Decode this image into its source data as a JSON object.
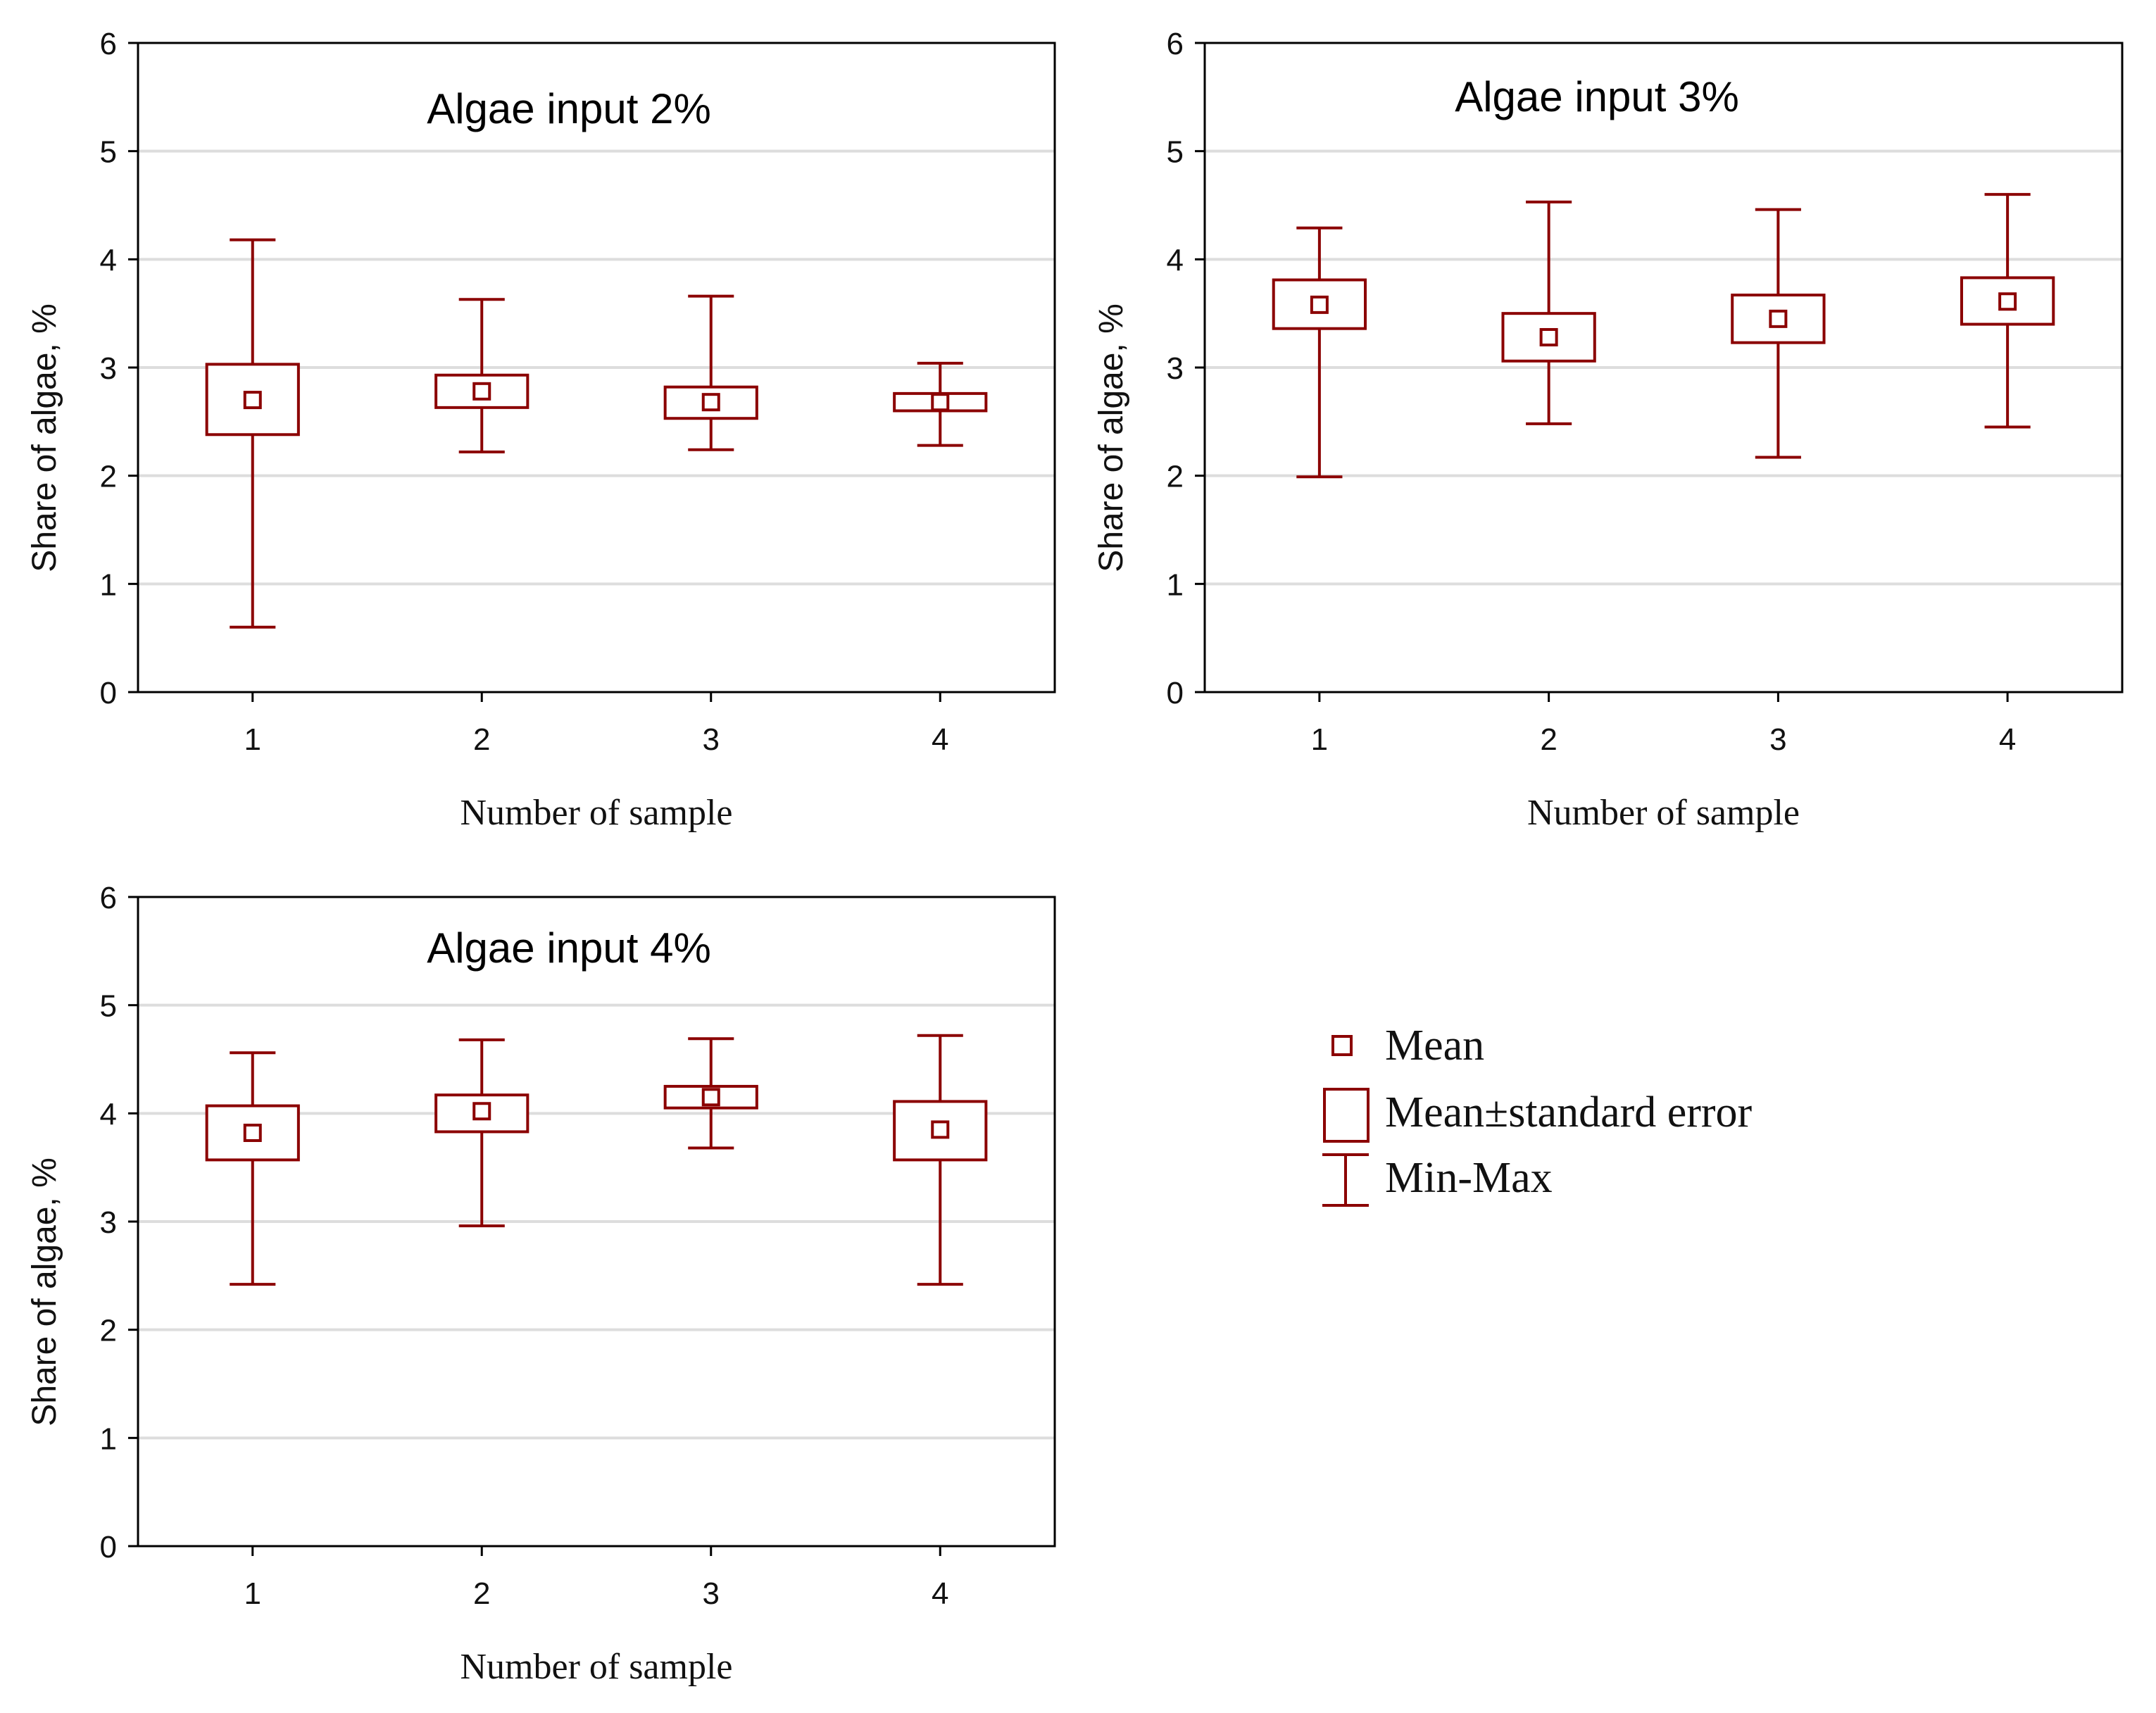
{
  "legend": {
    "mean_label": "Mean",
    "se_label": "Mean±standard error",
    "minmax_label": "Min-Max",
    "placement": "right of bottom panel"
  },
  "colors": {
    "series": "#8b0000",
    "grid": "#dddddd",
    "axis": "#000000"
  },
  "chart_data": [
    {
      "type": "box",
      "title": "Algae input 2%",
      "xlabel": "Number of sample",
      "ylabel": "Share of algae, %",
      "ylim": [
        0,
        6
      ],
      "yticks": [
        0,
        1,
        2,
        3,
        4,
        5,
        6
      ],
      "ytick_labels": [
        "0",
        "1",
        "2",
        "3",
        "4",
        "5",
        "6"
      ],
      "categories": [
        "1",
        "2",
        "3",
        "4"
      ],
      "mean": [
        2.7,
        2.78,
        2.68,
        2.68
      ],
      "se_low": [
        2.38,
        2.63,
        2.53,
        2.6
      ],
      "se_high": [
        3.03,
        2.93,
        2.82,
        2.76
      ],
      "min": [
        0.6,
        2.22,
        2.24,
        2.28
      ],
      "max": [
        4.18,
        3.63,
        3.66,
        3.04
      ],
      "grid": true
    },
    {
      "type": "box",
      "title": "Algae input 3%",
      "xlabel": "Number of sample",
      "ylabel": "Share of algae, %",
      "ylim": [
        0,
        6
      ],
      "yticks": [
        0,
        1,
        2,
        3,
        4,
        5,
        6
      ],
      "ytick_labels": [
        "0",
        "1",
        "2",
        "3",
        "4",
        "5",
        "6"
      ],
      "categories": [
        "1",
        "2",
        "3",
        "4"
      ],
      "mean": [
        3.58,
        3.28,
        3.45,
        3.61
      ],
      "se_low": [
        3.36,
        3.06,
        3.23,
        3.4
      ],
      "se_high": [
        3.81,
        3.5,
        3.67,
        3.83
      ],
      "min": [
        1.99,
        2.48,
        2.17,
        2.45
      ],
      "max": [
        4.29,
        4.53,
        4.46,
        4.6
      ],
      "grid": true
    },
    {
      "type": "box",
      "title": "Algae input 4%",
      "xlabel": "Number of sample",
      "ylabel": "Share of algae, %",
      "ylim": [
        0,
        6
      ],
      "yticks": [
        0,
        1,
        2,
        3,
        4,
        5,
        6
      ],
      "ytick_labels": [
        "0",
        "1",
        "2",
        "3",
        "4",
        "5",
        "6"
      ],
      "categories": [
        "1",
        "2",
        "3",
        "4"
      ],
      "mean": [
        3.82,
        4.02,
        4.15,
        3.85
      ],
      "se_low": [
        3.57,
        3.83,
        4.05,
        3.57
      ],
      "se_high": [
        4.07,
        4.17,
        4.25,
        4.11
      ],
      "min": [
        2.42,
        2.96,
        3.68,
        2.42
      ],
      "max": [
        4.56,
        4.68,
        4.69,
        4.72
      ],
      "grid": true
    }
  ]
}
